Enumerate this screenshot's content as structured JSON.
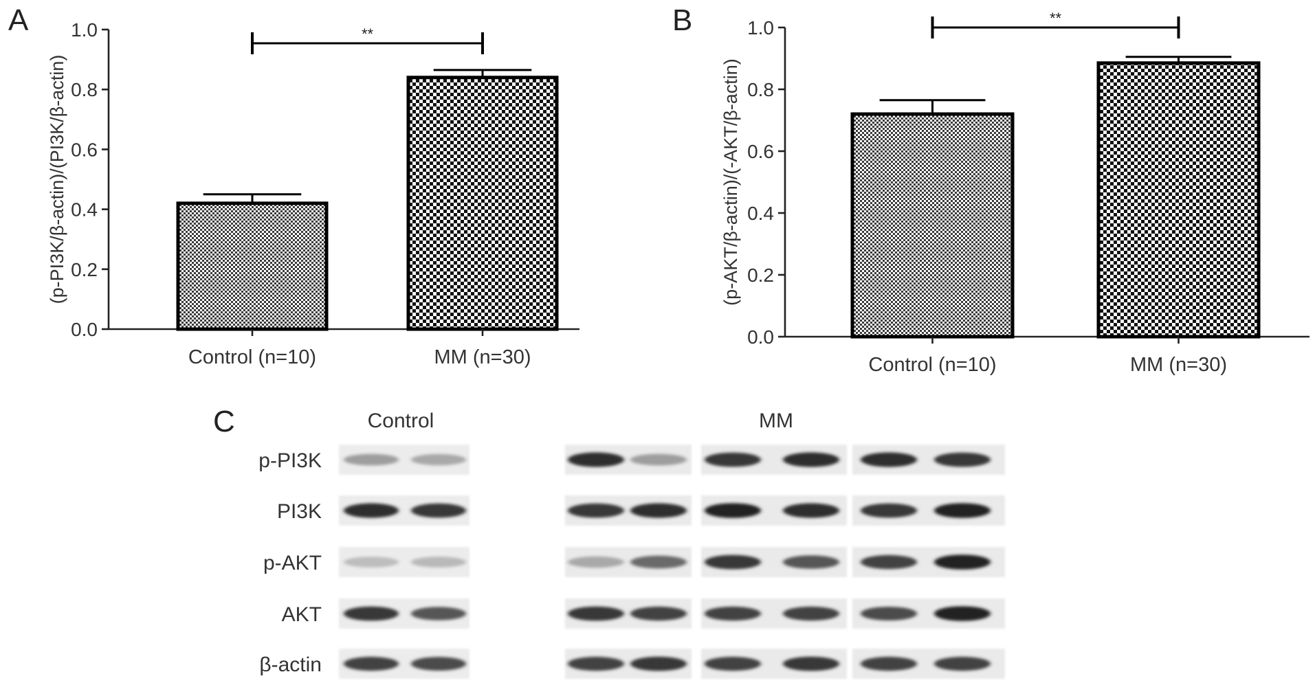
{
  "chart_data": [
    {
      "panel": "A",
      "type": "bar",
      "categories": [
        "Control (n=10)",
        "MM (n=30)"
      ],
      "values": [
        0.42,
        0.84
      ],
      "errors": [
        0.03,
        0.025
      ],
      "ylabel": "(p-PI3K/β-actin)/(PI3K/β-actin)",
      "ylim": [
        0,
        1.0
      ],
      "yticks": [
        "0.0",
        "0.2",
        "0.4",
        "0.6",
        "0.8",
        "1.0"
      ],
      "significance": "**",
      "patterns": [
        "fine-checker",
        "coarse-checker"
      ]
    },
    {
      "panel": "B",
      "type": "bar",
      "categories": [
        "Control (n=10)",
        "MM (n=30)"
      ],
      "values": [
        0.72,
        0.885
      ],
      "errors": [
        0.045,
        0.02
      ],
      "ylabel": "(p-AKT/β-actin)/(-AKT/β-actin)",
      "ylim": [
        0,
        1.0
      ],
      "yticks": [
        "0.0",
        "0.2",
        "0.4",
        "0.6",
        "0.8",
        "1.0"
      ],
      "significance": "**",
      "patterns": [
        "fine-checker",
        "coarse-checker"
      ]
    }
  ],
  "blot": {
    "panel": "C",
    "groups": [
      "Control",
      "MM"
    ],
    "rows": [
      "p-PI3K",
      "PI3K",
      "p-AKT",
      "AKT",
      "β-actin"
    ],
    "intensities": {
      "control": [
        [
          0.35,
          0.3
        ],
        [
          0.9,
          0.85
        ],
        [
          0.2,
          0.22
        ],
        [
          0.85,
          0.7
        ],
        [
          0.8,
          0.75
        ]
      ],
      "mm": [
        [
          0.9,
          0.35,
          0.85,
          0.9,
          0.9,
          0.85
        ],
        [
          0.85,
          0.9,
          0.95,
          0.9,
          0.85,
          0.95
        ],
        [
          0.3,
          0.6,
          0.85,
          0.7,
          0.8,
          0.95
        ],
        [
          0.85,
          0.8,
          0.8,
          0.8,
          0.75,
          0.95
        ],
        [
          0.8,
          0.85,
          0.8,
          0.85,
          0.8,
          0.8
        ]
      ]
    }
  }
}
